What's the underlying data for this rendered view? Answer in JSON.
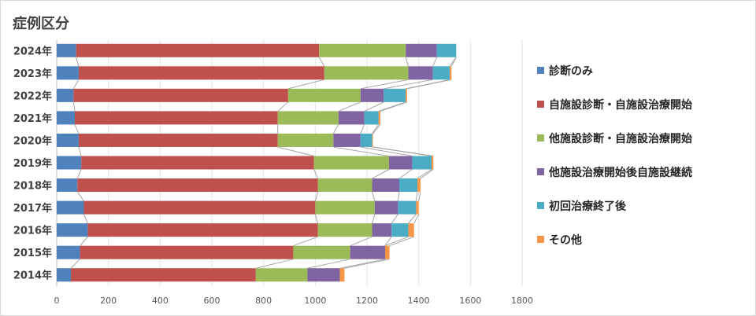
{
  "chart_data": {
    "type": "bar",
    "orientation": "horizontal",
    "stacked": true,
    "title": "症例区分",
    "categories": [
      "2024年",
      "2023年",
      "2022年",
      "2021年",
      "2020年",
      "2019年",
      "2018年",
      "2017年",
      "2016年",
      "2015年",
      "2014年"
    ],
    "xlim": [
      0,
      1800
    ],
    "xticks": [
      "0",
      "200",
      "400",
      "600",
      "800",
      "1000",
      "1200",
      "1400",
      "1600",
      "1800"
    ],
    "gridlines": true,
    "legend_position": "right",
    "series": [
      {
        "name": "診断のみ",
        "color": "#4f81bd",
        "values": [
          75,
          85,
          65,
          70,
          85,
          95,
          80,
          105,
          120,
          90,
          55
        ]
      },
      {
        "name": "自施設診断・自施設治療開始",
        "color": "#c0504d",
        "values": [
          940,
          950,
          830,
          785,
          770,
          900,
          930,
          895,
          890,
          825,
          715
        ]
      },
      {
        "name": "他施設診断・自施設治療開始",
        "color": "#9bbb59",
        "values": [
          335,
          325,
          280,
          235,
          215,
          290,
          210,
          230,
          210,
          220,
          200
        ]
      },
      {
        "name": "他施設治療開始後自施設継続",
        "color": "#8064a2",
        "values": [
          120,
          95,
          90,
          100,
          105,
          90,
          105,
          90,
          75,
          135,
          125
        ]
      },
      {
        "name": "初回治療終了後",
        "color": "#4bacc6",
        "values": [
          75,
          65,
          85,
          55,
          45,
          75,
          70,
          70,
          65,
          0,
          0
        ]
      },
      {
        "name": "その他",
        "color": "#f79646",
        "values": [
          0,
          7,
          5,
          7,
          3,
          7,
          12,
          10,
          22,
          17,
          18
        ]
      }
    ]
  }
}
